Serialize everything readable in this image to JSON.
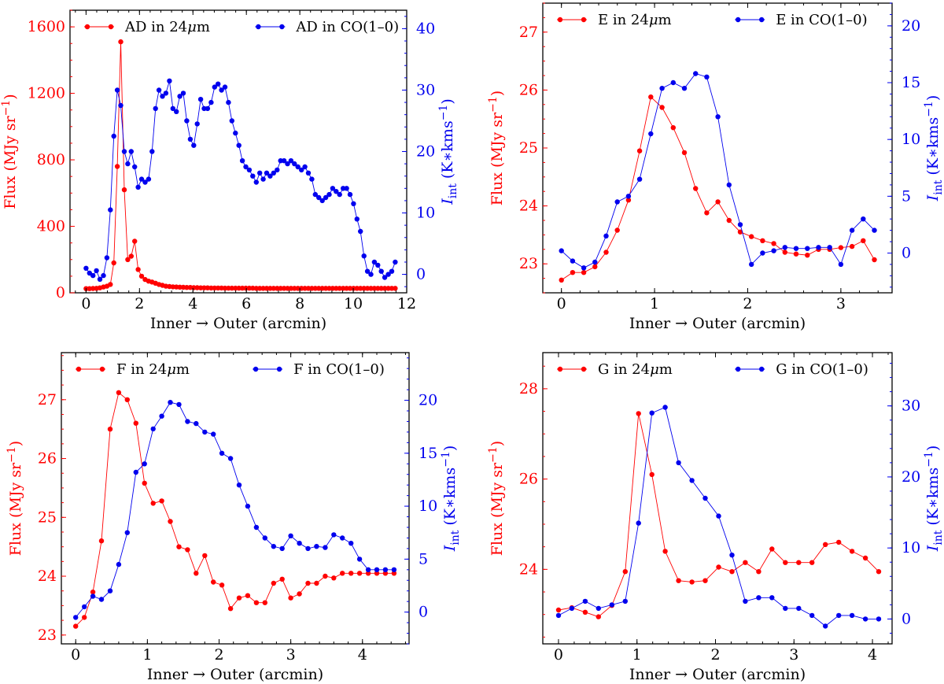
{
  "chart_data": [
    {
      "type": "line",
      "xlabel": "Inner → Outer (arcmin)",
      "ylabel_left": "Flux (MJy sr⁻¹)",
      "ylabel_right": "I_int (K∗kms⁻¹)",
      "xlim": [
        -0.6,
        12
      ],
      "ylim_left": [
        0,
        1700
      ],
      "ylim_right": [
        -3,
        43
      ],
      "xticks": [
        0,
        2,
        4,
        6,
        8,
        10,
        12
      ],
      "xtick_labels": [
        "0",
        "2",
        "4",
        "6",
        "8",
        "10",
        "12"
      ],
      "yticks_left": [
        0,
        400,
        800,
        1200,
        1600
      ],
      "ytick_labels_left": [
        "0",
        "400",
        "800",
        "1200",
        "1600"
      ],
      "yticks_right": [
        0,
        10,
        20,
        30,
        40
      ],
      "ytick_labels_right": [
        "0",
        "10",
        "20",
        "30",
        "40"
      ],
      "legend": [
        "AD in 24μm",
        "AD in CO(1–0)"
      ],
      "legend_position": "top",
      "colors": [
        "#ff0000",
        "#0000ee"
      ],
      "series": [
        {
          "name": "AD in 24μm",
          "axis": "left",
          "color": "#ff0000",
          "x": [
            0.0,
            0.13,
            0.26,
            0.39,
            0.52,
            0.65,
            0.78,
            0.91,
            1.04,
            1.17,
            1.3,
            1.43,
            1.56,
            1.69,
            1.82,
            1.95,
            2.08,
            2.21,
            2.34,
            2.47,
            2.6,
            2.73,
            2.86,
            2.99,
            3.12,
            3.25,
            3.38,
            3.51,
            3.64,
            3.77,
            3.9,
            4.03,
            4.16,
            4.29,
            4.42,
            4.55,
            4.68,
            4.81,
            4.94,
            5.07,
            5.2,
            5.33,
            5.46,
            5.59,
            5.72,
            5.85,
            5.98,
            6.11,
            6.24,
            6.37,
            6.5,
            6.63,
            6.76,
            6.89,
            7.02,
            7.15,
            7.28,
            7.41,
            7.54,
            7.67,
            7.8,
            7.93,
            8.06,
            8.19,
            8.32,
            8.45,
            8.58,
            8.71,
            8.84,
            8.97,
            9.1,
            9.23,
            9.36,
            9.49,
            9.62,
            9.75,
            9.88,
            10.01,
            10.14,
            10.27,
            10.4,
            10.53,
            10.66,
            10.79,
            10.92,
            11.05,
            11.18,
            11.31,
            11.44,
            11.57
          ],
          "y": [
            25,
            25,
            26,
            27,
            30,
            35,
            40,
            50,
            180,
            760,
            1510,
            620,
            200,
            220,
            310,
            140,
            100,
            80,
            70,
            65,
            58,
            50,
            45,
            40,
            38,
            36,
            35,
            34,
            33,
            32,
            32,
            31,
            31,
            30,
            30,
            30,
            29,
            29,
            29,
            29,
            28,
            28,
            28,
            28,
            28,
            28,
            28,
            28,
            28,
            27,
            27,
            27,
            27,
            27,
            27,
            27,
            27,
            27,
            27,
            27,
            27,
            27,
            27,
            27,
            27,
            27,
            27,
            27,
            27,
            27,
            27,
            27,
            27,
            27,
            27,
            27,
            27,
            27,
            27,
            27,
            27,
            27,
            27,
            27,
            27,
            27,
            27,
            27,
            27,
            27
          ]
        },
        {
          "name": "AD in CO(1–0)",
          "axis": "right",
          "color": "#0000ee",
          "x": [
            0.0,
            0.13,
            0.26,
            0.39,
            0.52,
            0.65,
            0.78,
            0.91,
            1.04,
            1.17,
            1.3,
            1.43,
            1.56,
            1.69,
            1.82,
            1.95,
            2.08,
            2.21,
            2.34,
            2.47,
            2.6,
            2.73,
            2.86,
            2.99,
            3.12,
            3.25,
            3.38,
            3.51,
            3.64,
            3.77,
            3.9,
            4.03,
            4.16,
            4.29,
            4.42,
            4.55,
            4.68,
            4.81,
            4.94,
            5.07,
            5.2,
            5.33,
            5.46,
            5.59,
            5.72,
            5.85,
            5.98,
            6.11,
            6.24,
            6.37,
            6.5,
            6.63,
            6.76,
            6.89,
            7.02,
            7.15,
            7.28,
            7.41,
            7.54,
            7.67,
            7.8,
            7.93,
            8.06,
            8.19,
            8.32,
            8.45,
            8.58,
            8.71,
            8.84,
            8.97,
            9.1,
            9.23,
            9.36,
            9.49,
            9.62,
            9.75,
            9.88,
            10.01,
            10.14,
            10.27,
            10.4,
            10.53,
            10.66,
            10.79,
            10.92,
            11.05,
            11.18,
            11.31,
            11.44,
            11.57
          ],
          "y": [
            1.0,
            0.2,
            -0.2,
            0.6,
            -0.8,
            -0.2,
            2.7,
            10.5,
            22.5,
            30.0,
            27.5,
            20.0,
            18.0,
            20.0,
            17.5,
            14.2,
            15.5,
            15.0,
            15.5,
            20.0,
            27.0,
            30.0,
            29.0,
            29.5,
            31.5,
            27.0,
            26.5,
            29.0,
            29.5,
            25.0,
            22.0,
            21.0,
            24.5,
            28.5,
            27.0,
            27.0,
            28.0,
            30.5,
            31.0,
            30.0,
            30.5,
            28.0,
            25.0,
            23.0,
            21.0,
            18.5,
            17.5,
            17.0,
            16.0,
            15.0,
            16.5,
            15.5,
            16.5,
            16.0,
            16.5,
            17.0,
            18.5,
            18.5,
            18.0,
            18.5,
            18.0,
            17.5,
            17.0,
            17.5,
            16.5,
            15.5,
            13.0,
            12.5,
            12.0,
            12.5,
            13.0,
            14.0,
            13.5,
            13.0,
            14.0,
            14.0,
            13.0,
            11.5,
            9.0,
            7.0,
            3.0,
            0.5,
            0.0,
            2.0,
            1.5,
            0.5,
            -0.5,
            0.0,
            0.5,
            2.0
          ]
        }
      ]
    },
    {
      "type": "line",
      "xlabel": "Inner → Outer (arcmin)",
      "ylabel_left": "Flux (MJy sr⁻¹)",
      "ylabel_right": "I_int (K∗kms⁻¹)",
      "xlim": [
        -0.2,
        3.55
      ],
      "ylim_left": [
        22.5,
        27.5
      ],
      "ylim_right": [
        -3.5,
        22
      ],
      "xticks": [
        0,
        1,
        2,
        3
      ],
      "xtick_labels": [
        "0",
        "1",
        "2",
        "3"
      ],
      "yticks_left": [
        23,
        24,
        25,
        26,
        27
      ],
      "ytick_labels_left": [
        "23",
        "24",
        "25",
        "26",
        "27"
      ],
      "yticks_right": [
        0,
        5,
        10,
        15,
        20
      ],
      "ytick_labels_right": [
        "0",
        "5",
        "10",
        "15",
        "20"
      ],
      "legend": [
        "E in 24μm",
        "E in CO(1–0)"
      ],
      "legend_position": "top",
      "colors": [
        "#ff0000",
        "#0000ee"
      ],
      "series": [
        {
          "name": "E in 24μm",
          "axis": "left",
          "color": "#ff0000",
          "x": [
            0.0,
            0.12,
            0.24,
            0.36,
            0.48,
            0.6,
            0.72,
            0.84,
            0.96,
            1.08,
            1.2,
            1.32,
            1.44,
            1.56,
            1.68,
            1.8,
            1.92,
            2.04,
            2.16,
            2.28,
            2.4,
            2.52,
            2.64,
            2.76,
            2.88,
            3.0,
            3.12,
            3.24,
            3.36
          ],
          "y": [
            22.72,
            22.85,
            22.85,
            22.95,
            23.2,
            23.58,
            24.1,
            24.95,
            25.88,
            25.7,
            25.35,
            24.92,
            24.3,
            23.88,
            24.07,
            23.75,
            23.55,
            23.47,
            23.4,
            23.35,
            23.2,
            23.17,
            23.15,
            23.25,
            23.25,
            23.28,
            23.3,
            23.4,
            23.07
          ]
        },
        {
          "name": "E in CO(1–0)",
          "axis": "right",
          "color": "#0000ee",
          "x": [
            0.0,
            0.12,
            0.24,
            0.36,
            0.48,
            0.6,
            0.72,
            0.84,
            0.96,
            1.08,
            1.2,
            1.32,
            1.44,
            1.56,
            1.68,
            1.8,
            1.92,
            2.04,
            2.16,
            2.28,
            2.4,
            2.52,
            2.64,
            2.76,
            2.88,
            3.0,
            3.12,
            3.24,
            3.36
          ],
          "y": [
            0.2,
            -0.7,
            -1.3,
            -0.8,
            1.5,
            4.5,
            5.0,
            6.5,
            10.5,
            14.5,
            15.0,
            14.5,
            15.8,
            15.5,
            12.0,
            6.0,
            2.5,
            -1.0,
            0.0,
            0.2,
            0.5,
            0.4,
            0.4,
            0.5,
            0.5,
            -1.0,
            2.0,
            3.0,
            2.0
          ]
        }
      ]
    },
    {
      "type": "line",
      "xlabel": "Inner → Outer (arcmin)",
      "ylabel_left": "Flux (MJy sr⁻¹)",
      "ylabel_right": "I_int (K∗kms⁻¹)",
      "xlim": [
        -0.2,
        4.65
      ],
      "ylim_left": [
        22.85,
        27.8
      ],
      "ylim_right": [
        -3,
        24.5
      ],
      "xticks": [
        0,
        1,
        2,
        3,
        4
      ],
      "xtick_labels": [
        "0",
        "1",
        "2",
        "3",
        "4"
      ],
      "yticks_left": [
        23,
        24,
        25,
        26,
        27
      ],
      "ytick_labels_left": [
        "23",
        "24",
        "25",
        "26",
        "27"
      ],
      "yticks_right": [
        0,
        5,
        10,
        15,
        20
      ],
      "ytick_labels_right": [
        "0",
        "5",
        "10",
        "15",
        "20"
      ],
      "legend": [
        "F in 24μm",
        "F in CO(1–0)"
      ],
      "legend_position": "top",
      "colors": [
        "#ff0000",
        "#0000ee"
      ],
      "series": [
        {
          "name": "F in 24μm",
          "axis": "left",
          "color": "#ff0000",
          "x": [
            0.0,
            0.12,
            0.24,
            0.36,
            0.48,
            0.6,
            0.72,
            0.84,
            0.96,
            1.08,
            1.2,
            1.32,
            1.44,
            1.56,
            1.68,
            1.8,
            1.92,
            2.04,
            2.16,
            2.28,
            2.4,
            2.52,
            2.64,
            2.76,
            2.88,
            3.0,
            3.12,
            3.24,
            3.36,
            3.48,
            3.6,
            3.72,
            3.84,
            3.96,
            4.08,
            4.2,
            4.32,
            4.44
          ],
          "y": [
            23.15,
            23.3,
            23.73,
            24.6,
            26.5,
            27.12,
            27.0,
            26.6,
            25.58,
            25.24,
            25.28,
            24.93,
            24.5,
            24.45,
            24.05,
            24.35,
            23.9,
            23.85,
            23.45,
            23.63,
            23.67,
            23.55,
            23.55,
            23.88,
            23.95,
            23.63,
            23.7,
            23.88,
            23.88,
            24.0,
            23.97,
            24.05,
            24.05,
            24.05,
            24.05,
            24.05,
            24.05,
            24.05
          ]
        },
        {
          "name": "F in CO(1–0)",
          "axis": "right",
          "color": "#0000ee",
          "x": [
            0.0,
            0.12,
            0.24,
            0.36,
            0.48,
            0.6,
            0.72,
            0.84,
            0.96,
            1.08,
            1.2,
            1.32,
            1.44,
            1.56,
            1.68,
            1.8,
            1.92,
            2.04,
            2.16,
            2.28,
            2.4,
            2.52,
            2.64,
            2.76,
            2.88,
            3.0,
            3.12,
            3.24,
            3.36,
            3.48,
            3.6,
            3.72,
            3.84,
            3.96,
            4.08,
            4.2,
            4.32,
            4.44
          ],
          "y": [
            -0.5,
            0.5,
            1.5,
            1.2,
            2.0,
            4.5,
            7.5,
            13.2,
            14.0,
            17.3,
            18.5,
            19.8,
            19.6,
            18.0,
            17.8,
            17.0,
            16.8,
            15.0,
            14.5,
            12.0,
            10.0,
            8.0,
            7.0,
            6.2,
            6.0,
            7.2,
            6.5,
            6.0,
            6.2,
            6.1,
            7.3,
            7.0,
            6.5,
            5.0,
            4.0,
            4.0,
            4.0,
            4.0
          ]
        }
      ]
    },
    {
      "type": "line",
      "xlabel": "Inner → Outer (arcmin)",
      "ylabel_left": "Flux (MJy sr⁻¹)",
      "ylabel_right": "I_int (K∗kms⁻¹)",
      "xlim": [
        -0.2,
        4.25
      ],
      "ylim_left": [
        22.35,
        28.8
      ],
      "ylim_right": [
        -3.5,
        37.5
      ],
      "xticks": [
        0,
        1,
        2,
        3,
        4
      ],
      "xtick_labels": [
        "0",
        "1",
        "2",
        "3",
        "4"
      ],
      "yticks_left": [
        24,
        26,
        28
      ],
      "ytick_labels_left": [
        "24",
        "26",
        "28"
      ],
      "yticks_right": [
        0,
        10,
        20,
        30
      ],
      "ytick_labels_right": [
        "0",
        "10",
        "20",
        "30"
      ],
      "legend": [
        "G in 24μm",
        "G in CO(1–0)"
      ],
      "legend_position": "top",
      "colors": [
        "#ff0000",
        "#0000ee"
      ],
      "series": [
        {
          "name": "G in 24μm",
          "axis": "left",
          "color": "#ff0000",
          "x": [
            0.0,
            0.17,
            0.34,
            0.51,
            0.68,
            0.85,
            1.02,
            1.19,
            1.36,
            1.53,
            1.7,
            1.87,
            2.04,
            2.21,
            2.38,
            2.55,
            2.72,
            2.89,
            3.06,
            3.23,
            3.4,
            3.57,
            3.74,
            3.91,
            4.08
          ],
          "y": [
            23.1,
            23.15,
            23.05,
            22.95,
            23.2,
            23.95,
            27.45,
            26.1,
            24.4,
            23.75,
            23.72,
            23.75,
            24.05,
            23.95,
            24.15,
            23.95,
            24.45,
            24.15,
            24.15,
            24.15,
            24.55,
            24.6,
            24.4,
            24.25,
            23.95
          ]
        },
        {
          "name": "G in CO(1–0)",
          "axis": "right",
          "color": "#0000ee",
          "x": [
            0.0,
            0.17,
            0.34,
            0.51,
            0.68,
            0.85,
            1.02,
            1.19,
            1.36,
            1.53,
            1.7,
            1.87,
            2.04,
            2.21,
            2.38,
            2.55,
            2.72,
            2.89,
            3.06,
            3.23,
            3.4,
            3.57,
            3.74,
            3.91,
            4.08
          ],
          "y": [
            0.5,
            1.5,
            2.5,
            1.5,
            2.0,
            2.5,
            13.5,
            29.0,
            29.8,
            22.0,
            19.5,
            17.0,
            14.5,
            9.0,
            2.5,
            3.0,
            3.0,
            1.5,
            1.5,
            0.5,
            -1.0,
            0.5,
            0.5,
            0.0,
            0.0
          ]
        }
      ]
    }
  ]
}
